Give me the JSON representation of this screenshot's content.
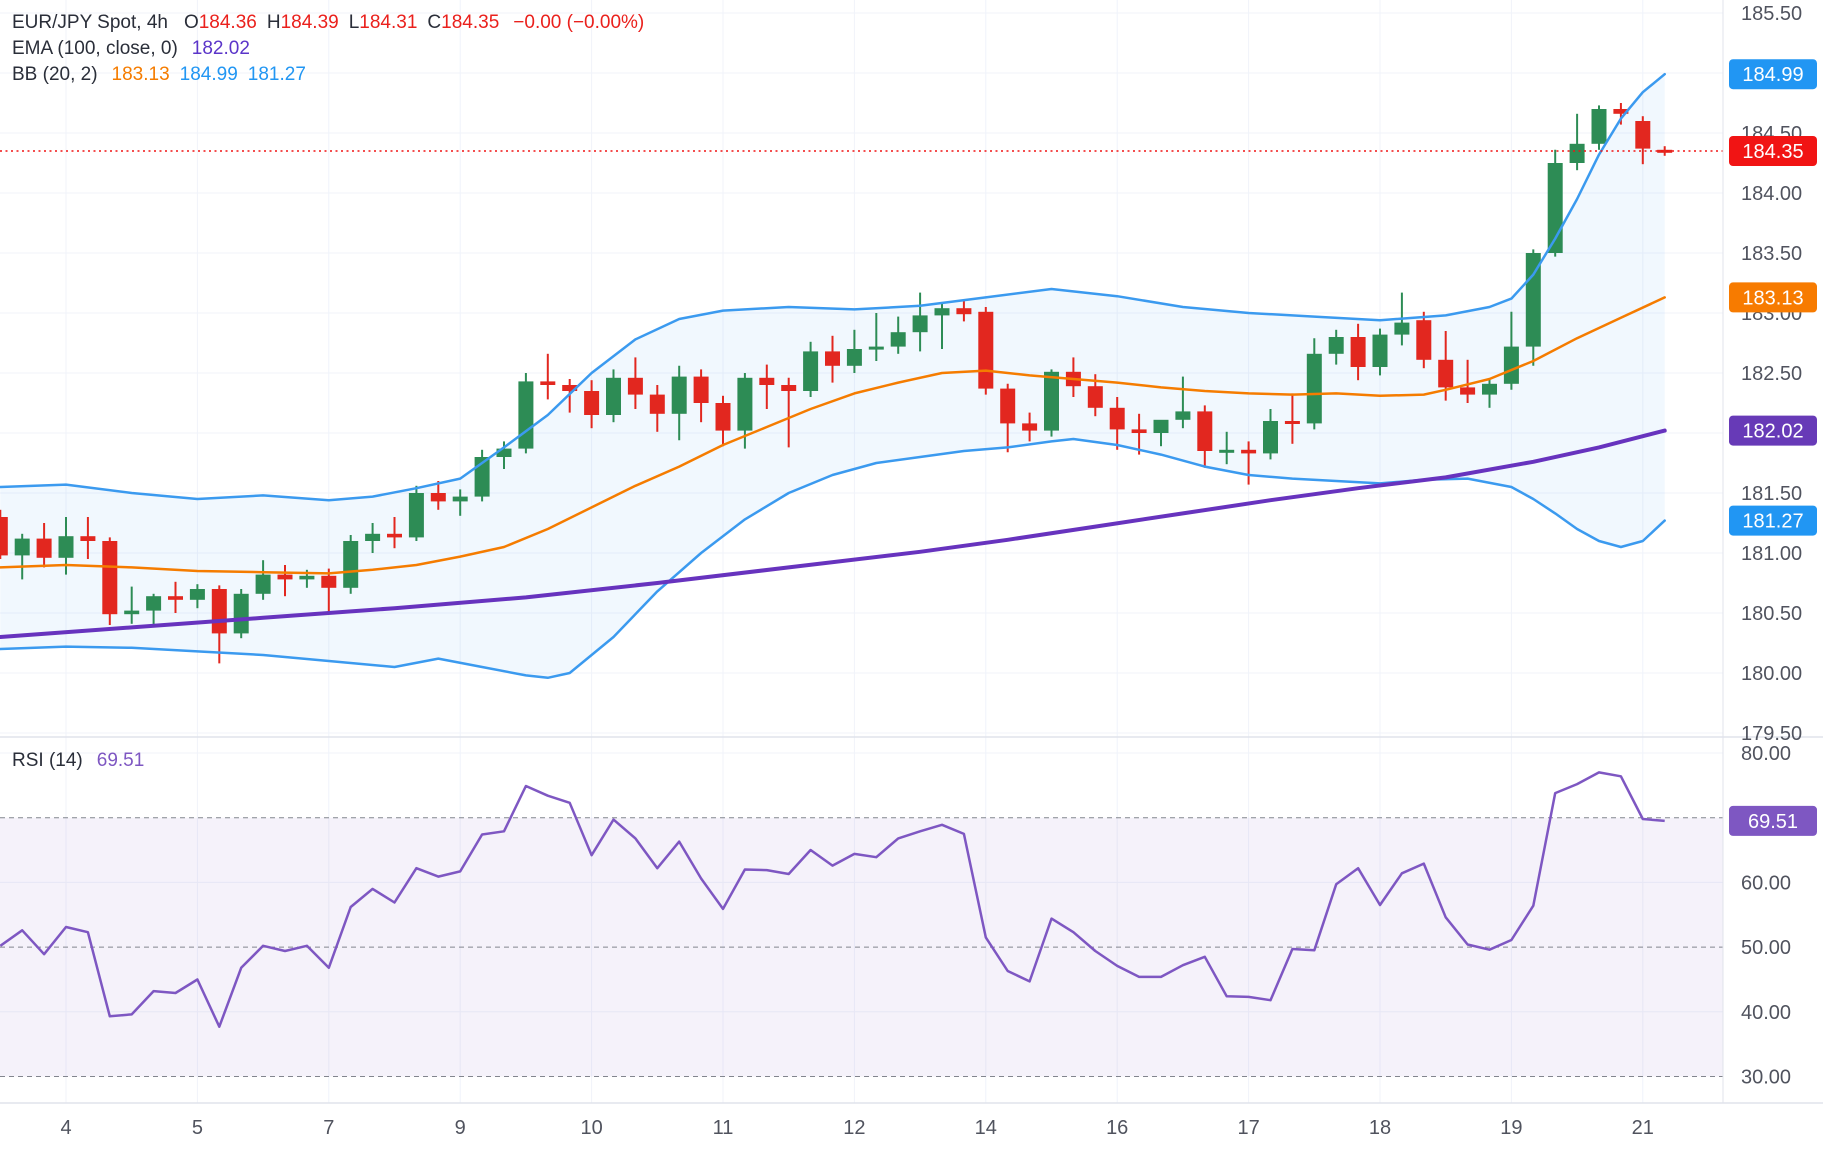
{
  "window": {
    "title": "EUR/JPY Spot 4h chart"
  },
  "legend": {
    "rows": [
      {
        "name": "symbol-legend-row",
        "segments": [
          {
            "t": "EUR/JPY Spot, 4h",
            "c": "dark",
            "gap": 16
          },
          {
            "t": "O",
            "c": "dark",
            "tight": true
          },
          {
            "t": "184.36",
            "c": "red"
          },
          {
            "t": "H",
            "c": "dark",
            "tight": true
          },
          {
            "t": "184.39",
            "c": "red"
          },
          {
            "t": "L",
            "c": "dark",
            "tight": true
          },
          {
            "t": "184.31",
            "c": "red"
          },
          {
            "t": "C",
            "c": "dark",
            "tight": true
          },
          {
            "t": "184.35",
            "c": "red",
            "gap": 14
          },
          {
            "t": "−0.00 (−0.00%)",
            "c": "red"
          }
        ]
      },
      {
        "name": "ema-legend-row",
        "segments": [
          {
            "t": "EMA (100, close, 0)",
            "c": "dark",
            "gap": 14
          },
          {
            "t": "182.02",
            "c": "purple"
          }
        ]
      },
      {
        "name": "bb-legend-row",
        "segments": [
          {
            "t": "BB (20, 2)",
            "c": "dark",
            "gap": 14
          },
          {
            "t": "183.13",
            "c": "orange"
          },
          {
            "t": "184.99",
            "c": "blue"
          },
          {
            "t": "181.27",
            "c": "blue"
          }
        ]
      }
    ],
    "rsi_row": {
      "name": "rsi-legend-row",
      "segments": [
        {
          "t": "RSI (14)",
          "c": "dark",
          "gap": 14
        },
        {
          "t": "69.51",
          "c": "rsi"
        }
      ]
    }
  },
  "colors": {
    "up": "#2D8C55",
    "down": "#E2271F",
    "bb_line": "#3B9AEF",
    "bb_fill": "rgba(59,154,239,0.07)",
    "basis_line": "#F57C00",
    "ema_line": "#6733BE",
    "rsi_line": "#7E57C2",
    "rsi_fill": "rgba(122,87,196,0.08)",
    "rsi_dash": "#82858E",
    "grid": "#F0F3FA",
    "separator": "#E0E3EB",
    "axis_text": "#50535E",
    "last_price_line": "#F11414",
    "badge_blue": "#2196F3",
    "badge_red": "#F11414",
    "badge_orange": "#F77B00",
    "badge_purple": "#673AB7",
    "badge_rsi": "#7E57C2"
  },
  "axes": {
    "price_ticks": [
      185.5,
      184.5,
      184.0,
      183.5,
      183.0,
      182.5,
      181.5,
      181.0,
      180.5,
      180.0,
      179.5
    ],
    "rsi_ticks": [
      80.0,
      60.0,
      50.0,
      40.0,
      30.0
    ],
    "time_labels": [
      {
        "t": "4",
        "k": 3
      },
      {
        "t": "5",
        "k": 9
      },
      {
        "t": "7",
        "k": 15
      },
      {
        "t": "9",
        "k": 21
      },
      {
        "t": "10",
        "k": 27
      },
      {
        "t": "11",
        "k": 33
      },
      {
        "t": "12",
        "k": 39
      },
      {
        "t": "14",
        "k": 45
      },
      {
        "t": "16",
        "k": 51
      },
      {
        "t": "17",
        "k": 57
      },
      {
        "t": "18",
        "k": 63
      },
      {
        "t": "19",
        "k": 69
      },
      {
        "t": "21",
        "k": 75
      }
    ]
  },
  "badges": [
    {
      "text": "184.99",
      "value": 184.99,
      "panel": "price",
      "color_key": "badge_blue"
    },
    {
      "text": "184.35",
      "value": 184.35,
      "panel": "price",
      "color_key": "badge_red"
    },
    {
      "text": "183.13",
      "value": 183.13,
      "panel": "price",
      "color_key": "badge_orange"
    },
    {
      "text": "182.02",
      "value": 182.02,
      "panel": "price",
      "color_key": "badge_purple"
    },
    {
      "text": "181.27",
      "value": 181.27,
      "panel": "price",
      "color_key": "badge_blue"
    },
    {
      "text": "69.51",
      "value": 69.51,
      "panel": "rsi",
      "color_key": "badge_rsi"
    }
  ],
  "chart_data": {
    "type": "candlestick",
    "symbol": "EUR/JPY Spot",
    "timeframe": "4h",
    "ohlc_header": {
      "open": 184.36,
      "high": 184.39,
      "low": 184.31,
      "close": 184.35,
      "change": "-0.00 (-0.00%)"
    },
    "price_axis_range": [
      179.5,
      185.5
    ],
    "rsi_axis_range": [
      25.9,
      80
    ],
    "last_price": 184.35,
    "indicators": {
      "ema": {
        "label": "EMA (100, close, 0)",
        "last": 182.02
      },
      "bb": {
        "label": "BB (20, 2)",
        "basis_last": 183.13,
        "upper_last": 184.99,
        "lower_last": 181.27
      },
      "rsi": {
        "label": "RSI (14)",
        "last": 69.51,
        "levels": [
          70,
          50,
          30
        ]
      }
    },
    "candles": [
      [
        181.3,
        181.36,
        180.95,
        180.98
      ],
      [
        180.98,
        181.16,
        180.78,
        181.12
      ],
      [
        181.12,
        181.25,
        180.88,
        180.96
      ],
      [
        180.96,
        181.3,
        180.82,
        181.14
      ],
      [
        181.14,
        181.3,
        180.95,
        181.1
      ],
      [
        181.1,
        181.13,
        180.4,
        180.49
      ],
      [
        180.49,
        180.72,
        180.41,
        180.52
      ],
      [
        180.52,
        180.66,
        180.38,
        180.64
      ],
      [
        180.64,
        180.76,
        180.5,
        180.61
      ],
      [
        180.61,
        180.74,
        180.54,
        180.7
      ],
      [
        180.7,
        180.73,
        180.08,
        180.33
      ],
      [
        180.33,
        180.7,
        180.29,
        180.66
      ],
      [
        180.66,
        180.94,
        180.61,
        180.82
      ],
      [
        180.82,
        180.9,
        180.64,
        180.78
      ],
      [
        180.78,
        180.86,
        180.71,
        180.81
      ],
      [
        180.81,
        180.87,
        180.5,
        180.71
      ],
      [
        180.71,
        181.15,
        180.66,
        181.1
      ],
      [
        181.1,
        181.25,
        181.0,
        181.16
      ],
      [
        181.16,
        181.3,
        181.04,
        181.13
      ],
      [
        181.13,
        181.56,
        181.1,
        181.5
      ],
      [
        181.5,
        181.6,
        181.36,
        181.43
      ],
      [
        181.43,
        181.53,
        181.31,
        181.47
      ],
      [
        181.47,
        181.86,
        181.43,
        181.8
      ],
      [
        181.8,
        181.93,
        181.7,
        181.87
      ],
      [
        181.87,
        182.5,
        181.83,
        182.43
      ],
      [
        182.43,
        182.66,
        182.28,
        182.4
      ],
      [
        182.4,
        182.45,
        182.17,
        182.35
      ],
      [
        182.35,
        182.44,
        182.04,
        182.15
      ],
      [
        182.15,
        182.53,
        182.09,
        182.46
      ],
      [
        182.46,
        182.63,
        182.2,
        182.32
      ],
      [
        182.32,
        182.4,
        182.01,
        182.16
      ],
      [
        182.16,
        182.56,
        181.94,
        182.47
      ],
      [
        182.47,
        182.53,
        182.09,
        182.25
      ],
      [
        182.25,
        182.31,
        181.89,
        182.02
      ],
      [
        182.02,
        182.5,
        181.87,
        182.46
      ],
      [
        182.46,
        182.57,
        182.2,
        182.4
      ],
      [
        182.4,
        182.46,
        181.88,
        182.35
      ],
      [
        182.35,
        182.76,
        182.3,
        182.68
      ],
      [
        182.68,
        182.81,
        182.42,
        182.56
      ],
      [
        182.56,
        182.86,
        182.5,
        182.7
      ],
      [
        182.7,
        183.0,
        182.6,
        182.72
      ],
      [
        182.72,
        182.97,
        182.66,
        182.84
      ],
      [
        182.84,
        183.17,
        182.68,
        182.98
      ],
      [
        182.98,
        183.08,
        182.7,
        183.04
      ],
      [
        183.04,
        183.1,
        182.93,
        182.99
      ],
      [
        183.01,
        183.05,
        182.32,
        182.37
      ],
      [
        182.37,
        182.41,
        181.84,
        182.08
      ],
      [
        182.08,
        182.17,
        181.93,
        182.02
      ],
      [
        182.02,
        182.53,
        181.97,
        182.51
      ],
      [
        182.51,
        182.63,
        182.3,
        182.39
      ],
      [
        182.39,
        182.49,
        182.14,
        182.21
      ],
      [
        182.21,
        182.3,
        181.86,
        182.03
      ],
      [
        182.03,
        182.16,
        181.82,
        182.0
      ],
      [
        182.0,
        182.09,
        181.89,
        182.11
      ],
      [
        182.11,
        182.47,
        182.04,
        182.18
      ],
      [
        182.18,
        182.23,
        181.71,
        181.85
      ],
      [
        181.85,
        182.01,
        181.74,
        181.86
      ],
      [
        181.86,
        181.93,
        181.57,
        181.83
      ],
      [
        181.83,
        182.2,
        181.78,
        182.1
      ],
      [
        182.1,
        182.33,
        181.91,
        182.08
      ],
      [
        182.08,
        182.79,
        182.03,
        182.66
      ],
      [
        182.66,
        182.86,
        182.57,
        182.8
      ],
      [
        182.8,
        182.91,
        182.44,
        182.55
      ],
      [
        182.55,
        182.87,
        182.48,
        182.82
      ],
      [
        182.82,
        183.17,
        182.73,
        182.92
      ],
      [
        182.94,
        183.01,
        182.54,
        182.61
      ],
      [
        182.61,
        182.85,
        182.27,
        182.38
      ],
      [
        182.38,
        182.61,
        182.25,
        182.32
      ],
      [
        182.32,
        182.45,
        182.21,
        182.41
      ],
      [
        182.41,
        183.01,
        182.36,
        182.72
      ],
      [
        182.72,
        183.53,
        182.56,
        183.5
      ],
      [
        183.5,
        184.36,
        183.47,
        184.25
      ],
      [
        184.25,
        184.66,
        184.19,
        184.41
      ],
      [
        184.41,
        184.73,
        184.36,
        184.7
      ],
      [
        184.7,
        184.75,
        184.57,
        184.66
      ],
      [
        184.6,
        184.64,
        184.24,
        184.37
      ],
      [
        184.36,
        184.39,
        184.31,
        184.35
      ]
    ],
    "ema100": [
      [
        0,
        180.3
      ],
      [
        6,
        180.38
      ],
      [
        12,
        180.46
      ],
      [
        18,
        180.54
      ],
      [
        24,
        180.63
      ],
      [
        30,
        180.75
      ],
      [
        36,
        180.88
      ],
      [
        42,
        181.01
      ],
      [
        46,
        181.11
      ],
      [
        50,
        181.22
      ],
      [
        54,
        181.33
      ],
      [
        58,
        181.44
      ],
      [
        62,
        181.54
      ],
      [
        66,
        181.63
      ],
      [
        70,
        181.76
      ],
      [
        73,
        181.88
      ],
      [
        76,
        182.02
      ]
    ],
    "bb_upper": [
      [
        0,
        181.55
      ],
      [
        3,
        181.57
      ],
      [
        6,
        181.5
      ],
      [
        9,
        181.45
      ],
      [
        12,
        181.48
      ],
      [
        15,
        181.44
      ],
      [
        17,
        181.47
      ],
      [
        19,
        181.54
      ],
      [
        21,
        181.62
      ],
      [
        23,
        181.88
      ],
      [
        25,
        182.15
      ],
      [
        27,
        182.5
      ],
      [
        29,
        182.78
      ],
      [
        31,
        182.95
      ],
      [
        33,
        183.02
      ],
      [
        36,
        183.05
      ],
      [
        39,
        183.03
      ],
      [
        42,
        183.06
      ],
      [
        45,
        183.13
      ],
      [
        48,
        183.2
      ],
      [
        51,
        183.14
      ],
      [
        54,
        183.05
      ],
      [
        57,
        183.0
      ],
      [
        60,
        182.97
      ],
      [
        63,
        182.94
      ],
      [
        66,
        182.98
      ],
      [
        68,
        183.05
      ],
      [
        69,
        183.12
      ],
      [
        70,
        183.32
      ],
      [
        71,
        183.62
      ],
      [
        72,
        183.95
      ],
      [
        73,
        184.32
      ],
      [
        74,
        184.62
      ],
      [
        75,
        184.84
      ],
      [
        76,
        184.99
      ]
    ],
    "bb_basis": [
      [
        0,
        180.88
      ],
      [
        3,
        180.9
      ],
      [
        6,
        180.88
      ],
      [
        9,
        180.85
      ],
      [
        12,
        180.84
      ],
      [
        15,
        180.83
      ],
      [
        17,
        180.86
      ],
      [
        19,
        180.9
      ],
      [
        21,
        180.97
      ],
      [
        23,
        181.05
      ],
      [
        25,
        181.2
      ],
      [
        27,
        181.38
      ],
      [
        29,
        181.56
      ],
      [
        31,
        181.72
      ],
      [
        33,
        181.9
      ],
      [
        35,
        182.05
      ],
      [
        37,
        182.2
      ],
      [
        39,
        182.33
      ],
      [
        41,
        182.42
      ],
      [
        43,
        182.5
      ],
      [
        45,
        182.52
      ],
      [
        47,
        182.48
      ],
      [
        49,
        182.45
      ],
      [
        51,
        182.42
      ],
      [
        53,
        182.38
      ],
      [
        55,
        182.35
      ],
      [
        57,
        182.33
      ],
      [
        59,
        182.32
      ],
      [
        61,
        182.33
      ],
      [
        63,
        182.31
      ],
      [
        65,
        182.32
      ],
      [
        66,
        182.36
      ],
      [
        68,
        182.45
      ],
      [
        70,
        182.6
      ],
      [
        72,
        182.79
      ],
      [
        74,
        182.96
      ],
      [
        76,
        183.13
      ]
    ],
    "bb_lower": [
      [
        0,
        180.2
      ],
      [
        3,
        180.22
      ],
      [
        6,
        180.21
      ],
      [
        9,
        180.18
      ],
      [
        12,
        180.15
      ],
      [
        15,
        180.1
      ],
      [
        18,
        180.05
      ],
      [
        20,
        180.12
      ],
      [
        22,
        180.05
      ],
      [
        24,
        179.98
      ],
      [
        25,
        179.96
      ],
      [
        26,
        180.0
      ],
      [
        28,
        180.3
      ],
      [
        30,
        180.68
      ],
      [
        32,
        181.0
      ],
      [
        34,
        181.28
      ],
      [
        36,
        181.5
      ],
      [
        38,
        181.65
      ],
      [
        40,
        181.75
      ],
      [
        42,
        181.8
      ],
      [
        44,
        181.85
      ],
      [
        46,
        181.88
      ],
      [
        48,
        181.93
      ],
      [
        49,
        181.95
      ],
      [
        51,
        181.9
      ],
      [
        53,
        181.82
      ],
      [
        55,
        181.72
      ],
      [
        57,
        181.65
      ],
      [
        59,
        181.62
      ],
      [
        61,
        181.6
      ],
      [
        63,
        181.58
      ],
      [
        65,
        181.61
      ],
      [
        67,
        181.62
      ],
      [
        69,
        181.55
      ],
      [
        70,
        181.45
      ],
      [
        71,
        181.33
      ],
      [
        72,
        181.2
      ],
      [
        73,
        181.1
      ],
      [
        74,
        181.05
      ],
      [
        75,
        181.1
      ],
      [
        76,
        181.27
      ]
    ],
    "rsi14": [
      50.2,
      52.6,
      48.9,
      53.1,
      52.3,
      39.3,
      39.6,
      43.2,
      42.9,
      45.0,
      37.7,
      46.8,
      50.2,
      49.4,
      50.2,
      46.8,
      56.2,
      59.0,
      56.9,
      62.2,
      60.9,
      61.7,
      67.4,
      67.9,
      74.9,
      73.4,
      72.3,
      64.2,
      69.7,
      66.8,
      62.2,
      66.3,
      60.6,
      55.9,
      62.0,
      61.9,
      61.3,
      65.0,
      62.6,
      64.4,
      63.9,
      66.8,
      67.9,
      68.9,
      67.5,
      51.5,
      46.3,
      44.7,
      54.4,
      52.3,
      49.4,
      47.1,
      45.4,
      45.4,
      47.2,
      48.5,
      42.4,
      42.3,
      41.8,
      49.7,
      49.5,
      59.7,
      62.2,
      56.5,
      61.4,
      62.9,
      54.6,
      50.4,
      49.6,
      51.1,
      56.4,
      73.8,
      75.2,
      77.0,
      76.4,
      69.8,
      69.51
    ]
  }
}
